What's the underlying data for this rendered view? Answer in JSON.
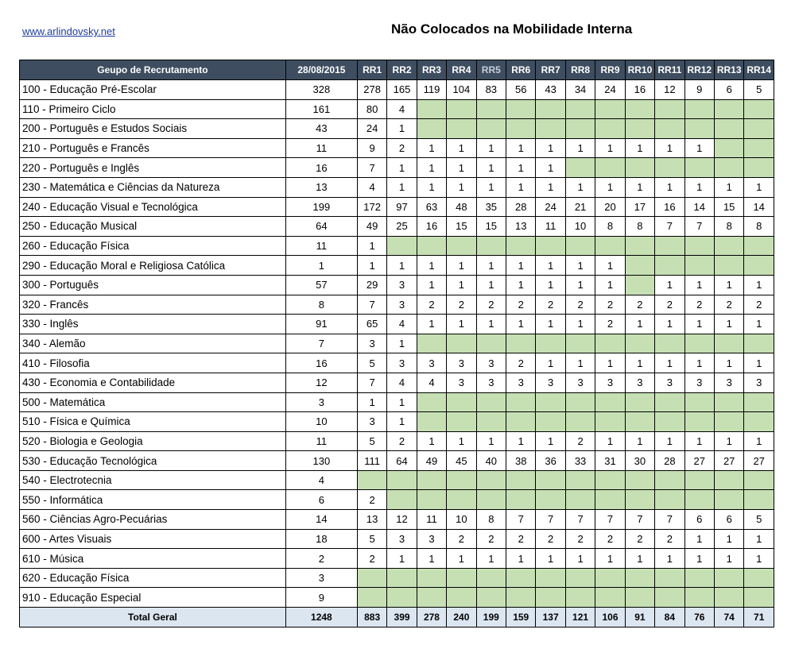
{
  "header": {
    "site": "www.arlindovsky.net",
    "title": "Não Colocados na Mobilidade Interna"
  },
  "table": {
    "col_group": "Geupo de Recrutamento",
    "col_date": "28/08/2015",
    "rr_cols": [
      "RR1",
      "RR2",
      "RR3",
      "RR4",
      "RR5",
      "RR6",
      "RR7",
      "RR8",
      "RR9",
      "RR10",
      "RR11",
      "RR12",
      "RR13",
      "RR14"
    ],
    "rows": [
      {
        "group": "100 - Educação Pré-Escolar",
        "date": "328",
        "rr": [
          "278",
          "165",
          "119",
          "104",
          "83",
          "56",
          "43",
          "34",
          "24",
          "16",
          "12",
          "9",
          "6",
          "5"
        ]
      },
      {
        "group": "110 - Primeiro Ciclo",
        "date": "161",
        "rr": [
          "80",
          "4",
          "",
          "",
          "",
          "",
          "",
          "",
          "",
          "",
          "",
          "",
          "",
          ""
        ]
      },
      {
        "group": "200 - Português e Estudos Sociais",
        "date": "43",
        "rr": [
          "24",
          "1",
          "",
          "",
          "",
          "",
          "",
          "",
          "",
          "",
          "",
          "",
          "",
          ""
        ]
      },
      {
        "group": "210 - Português e Francês",
        "date": "11",
        "rr": [
          "9",
          "2",
          "1",
          "1",
          "1",
          "1",
          "1",
          "1",
          "1",
          "1",
          "1",
          "1",
          "",
          ""
        ]
      },
      {
        "group": "220 - Português e Inglês",
        "date": "16",
        "rr": [
          "7",
          "1",
          "1",
          "1",
          "1",
          "1",
          "1",
          "",
          "",
          "",
          "",
          "",
          "",
          ""
        ]
      },
      {
        "group": "230 - Matemática e Ciências da Natureza",
        "date": "13",
        "rr": [
          "4",
          "1",
          "1",
          "1",
          "1",
          "1",
          "1",
          "1",
          "1",
          "1",
          "1",
          "1",
          "1",
          "1"
        ]
      },
      {
        "group": "240 - Educação Visual e Tecnológica",
        "date": "199",
        "rr": [
          "172",
          "97",
          "63",
          "48",
          "35",
          "28",
          "24",
          "21",
          "20",
          "17",
          "16",
          "14",
          "15",
          "14"
        ]
      },
      {
        "group": "250 - Educação Musical",
        "date": "64",
        "rr": [
          "49",
          "25",
          "16",
          "15",
          "15",
          "13",
          "11",
          "10",
          "8",
          "8",
          "7",
          "7",
          "8",
          "8"
        ]
      },
      {
        "group": "260 - Educação Física",
        "date": "11",
        "rr": [
          "1",
          "",
          "",
          "",
          "",
          "",
          "",
          "",
          "",
          "",
          "",
          "",
          "",
          ""
        ]
      },
      {
        "group": "290 - Educação Moral e Religiosa Católica",
        "date": "1",
        "rr": [
          "1",
          "1",
          "1",
          "1",
          "1",
          "1",
          "1",
          "1",
          "1",
          "",
          "",
          "",
          "",
          ""
        ]
      },
      {
        "group": "300 - Português",
        "date": "57",
        "rr": [
          "29",
          "3",
          "1",
          "1",
          "1",
          "1",
          "1",
          "1",
          "1",
          "",
          "1",
          "1",
          "1",
          "1"
        ]
      },
      {
        "group": "320 - Francês",
        "date": "8",
        "rr": [
          "7",
          "3",
          "2",
          "2",
          "2",
          "2",
          "2",
          "2",
          "2",
          "2",
          "2",
          "2",
          "2",
          "2"
        ]
      },
      {
        "group": "330 - Inglês",
        "date": "91",
        "rr": [
          "65",
          "4",
          "1",
          "1",
          "1",
          "1",
          "1",
          "1",
          "2",
          "1",
          "1",
          "1",
          "1",
          "1"
        ]
      },
      {
        "group": "340 - Alemão",
        "date": "7",
        "rr": [
          "3",
          "1",
          "",
          "",
          "",
          "",
          "",
          "",
          "",
          "",
          "",
          "",
          "",
          ""
        ]
      },
      {
        "group": "410 - Filosofia",
        "date": "16",
        "rr": [
          "5",
          "3",
          "3",
          "3",
          "3",
          "2",
          "1",
          "1",
          "1",
          "1",
          "1",
          "1",
          "1",
          "1"
        ]
      },
      {
        "group": "430 - Economia  e Contabilidade",
        "date": "12",
        "rr": [
          "7",
          "4",
          "4",
          "3",
          "3",
          "3",
          "3",
          "3",
          "3",
          "3",
          "3",
          "3",
          "3",
          "3"
        ]
      },
      {
        "group": "500 - Matemática",
        "date": "3",
        "rr": [
          "1",
          "1",
          "",
          "",
          "",
          "",
          "",
          "",
          "",
          "",
          "",
          "",
          "",
          ""
        ]
      },
      {
        "group": "510 - Física e Química",
        "date": "10",
        "rr": [
          "3",
          "1",
          "",
          "",
          "",
          "",
          "",
          "",
          "",
          "",
          "",
          "",
          "",
          ""
        ]
      },
      {
        "group": "520 - Biologia e Geologia",
        "date": "11",
        "rr": [
          "5",
          "2",
          "1",
          "1",
          "1",
          "1",
          "1",
          "2",
          "1",
          "1",
          "1",
          "1",
          "1",
          "1"
        ]
      },
      {
        "group": "530 - Educação Tecnológica",
        "date": "130",
        "rr": [
          "111",
          "64",
          "49",
          "45",
          "40",
          "38",
          "36",
          "33",
          "31",
          "30",
          "28",
          "27",
          "27",
          "27"
        ]
      },
      {
        "group": "540 - Electrotecnia",
        "date": "4",
        "rr": [
          "",
          "",
          "",
          "",
          "",
          "",
          "",
          "",
          "",
          "",
          "",
          "",
          "",
          ""
        ]
      },
      {
        "group": "550 - Informática",
        "date": "6",
        "rr": [
          "2",
          "",
          "",
          "",
          "",
          "",
          "",
          "",
          "",
          "",
          "",
          "",
          "",
          ""
        ]
      },
      {
        "group": "560 - Ciências Agro-Pecuárias",
        "date": "14",
        "rr": [
          "13",
          "12",
          "11",
          "10",
          "8",
          "7",
          "7",
          "7",
          "7",
          "7",
          "7",
          "6",
          "6",
          "5"
        ]
      },
      {
        "group": "600 - Artes Visuais",
        "date": "18",
        "rr": [
          "5",
          "3",
          "3",
          "2",
          "2",
          "2",
          "2",
          "2",
          "2",
          "2",
          "2",
          "1",
          "1",
          "1"
        ]
      },
      {
        "group": "610 - Música",
        "date": "2",
        "rr": [
          "2",
          "1",
          "1",
          "1",
          "1",
          "1",
          "1",
          "1",
          "1",
          "1",
          "1",
          "1",
          "1",
          "1"
        ]
      },
      {
        "group": "620 - Educação Física",
        "date": "3",
        "rr": [
          "",
          "",
          "",
          "",
          "",
          "",
          "",
          "",
          "",
          "",
          "",
          "",
          "",
          ""
        ]
      },
      {
        "group": "910 - Educação Especial",
        "date": "9",
        "rr": [
          "",
          "",
          "",
          "",
          "",
          "",
          "",
          "",
          "",
          "",
          "",
          "",
          "",
          ""
        ]
      }
    ],
    "total": {
      "label": "Total Geral",
      "date": "1248",
      "rr": [
        "883",
        "399",
        "278",
        "240",
        "199",
        "159",
        "137",
        "121",
        "106",
        "91",
        "84",
        "76",
        "74",
        "71"
      ]
    }
  }
}
